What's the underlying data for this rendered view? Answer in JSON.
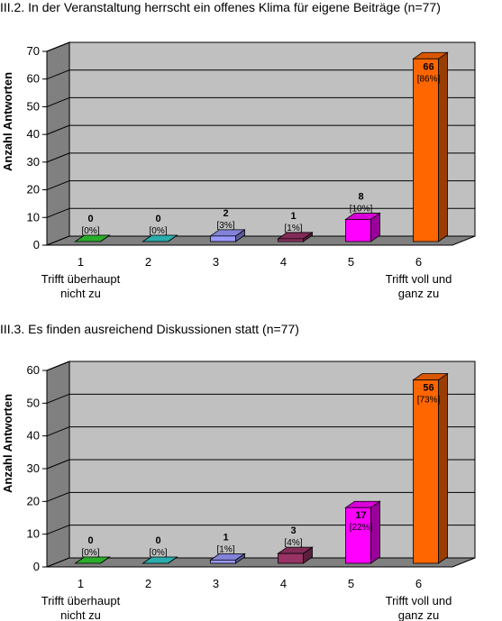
{
  "colors": {
    "wall": "#c0c0c0",
    "floor": "#808080",
    "grid": "#000000",
    "bars": [
      "#33cc33",
      "#33cccc",
      "#9999ff",
      "#993366",
      "#ff00ff",
      "#ff6600"
    ]
  },
  "chart_data": [
    {
      "type": "bar",
      "title": "III.2. In der Veranstaltung herrscht ein offenes Klima für eigene Beiträge (n=77)",
      "ylabel": "Anzahl Antworten",
      "ylim": [
        0,
        70
      ],
      "yticks": [
        0,
        10,
        20,
        30,
        40,
        50,
        60,
        70
      ],
      "ytick_labels": [
        "0",
        "10",
        "20",
        "30",
        "40",
        "50",
        "60",
        "70"
      ],
      "categories": [
        "1",
        "2",
        "3",
        "4",
        "5",
        "6"
      ],
      "category_sublabels": [
        [
          "Trifft überhaupt",
          "nicht zu"
        ],
        [],
        [],
        [],
        [],
        [
          "Trifft voll und",
          "ganz zu"
        ]
      ],
      "values": [
        0,
        0,
        2,
        1,
        8,
        66
      ],
      "value_labels": [
        "0",
        "0",
        "2",
        "1",
        "8",
        "66"
      ],
      "percent_labels": [
        "[0%]",
        "[0%]",
        "[3%]",
        "[1%]",
        "[10%]",
        "[86%]"
      ],
      "grid": true,
      "legend": "none"
    },
    {
      "type": "bar",
      "title": "III.3. Es finden ausreichend Diskussionen statt (n=77)",
      "ylabel": "Anzahl Antworten",
      "ylim": [
        0,
        60
      ],
      "yticks": [
        0,
        10,
        20,
        30,
        40,
        50,
        60
      ],
      "ytick_labels": [
        "0",
        "10",
        "20",
        "30",
        "40",
        "50",
        "60"
      ],
      "categories": [
        "1",
        "2",
        "3",
        "4",
        "5",
        "6"
      ],
      "category_sublabels": [
        [
          "Trifft überhaupt",
          "nicht zu"
        ],
        [],
        [],
        [],
        [],
        [
          "Trifft voll und",
          "ganz zu"
        ]
      ],
      "values": [
        0,
        0,
        1,
        3,
        17,
        56
      ],
      "value_labels": [
        "0",
        "0",
        "1",
        "3",
        "17",
        "56"
      ],
      "percent_labels": [
        "[0%]",
        "[0%]",
        "[1%]",
        "[4%]",
        "[22%]",
        "[73%]"
      ],
      "grid": true,
      "legend": "none"
    }
  ]
}
